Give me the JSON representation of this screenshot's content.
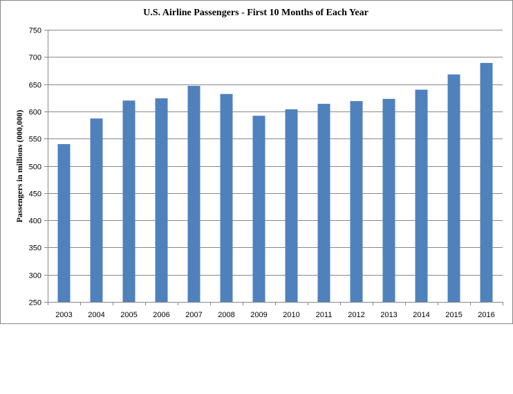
{
  "chart_data": {
    "type": "bar",
    "title": "U.S. Airline Passengers - First 10 Months of Each Year",
    "xlabel": "",
    "ylabel": "Passengers in millions (000,000)",
    "ylim": [
      250,
      750
    ],
    "yticks": [
      250,
      300,
      350,
      400,
      450,
      500,
      550,
      600,
      650,
      700,
      750
    ],
    "grid": true,
    "legend": "none",
    "categories": [
      "2003",
      "2004",
      "2005",
      "2006",
      "2007",
      "2008",
      "2009",
      "2010",
      "2011",
      "2012",
      "2013",
      "2014",
      "2015",
      "2016"
    ],
    "values": [
      540,
      587,
      620,
      624,
      647,
      632,
      592,
      604,
      614,
      619,
      623,
      640,
      668,
      689
    ],
    "bar_color": "#4F81BD"
  }
}
